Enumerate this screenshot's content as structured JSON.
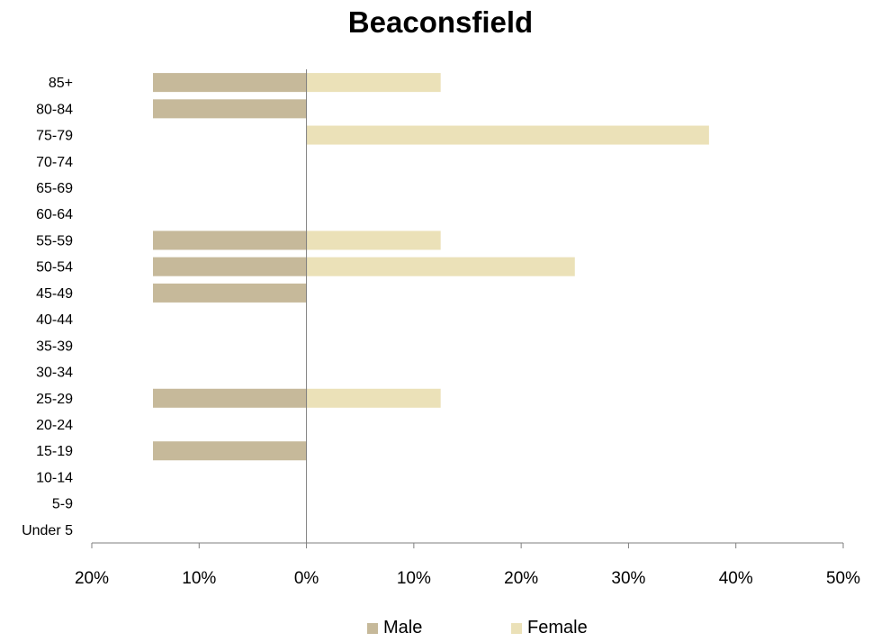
{
  "chart_data": {
    "type": "bar",
    "orientation": "horizontal",
    "title": "Beaconsfield",
    "categories": [
      "85+",
      "80-84",
      "75-79",
      "70-74",
      "65-69",
      "60-64",
      "55-59",
      "50-54",
      "45-49",
      "40-44",
      "35-39",
      "30-34",
      "25-29",
      "20-24",
      "15-19",
      "10-14",
      "5-9",
      "Under 5"
    ],
    "series": [
      {
        "name": "Male",
        "color": "#c6b99a",
        "values": [
          14.3,
          14.3,
          0,
          0,
          0,
          0,
          14.3,
          14.3,
          14.3,
          0,
          0,
          0,
          14.3,
          0,
          14.3,
          0,
          0,
          0
        ]
      },
      {
        "name": "Female",
        "color": "#ebe1b8",
        "values": [
          12.5,
          0,
          37.5,
          0,
          0,
          0,
          12.5,
          25.0,
          0,
          0,
          0,
          0,
          12.5,
          0,
          0,
          0,
          0,
          0
        ]
      }
    ],
    "xlim": [
      -20,
      50
    ],
    "xticks": [
      -20,
      -10,
      0,
      10,
      20,
      30,
      40,
      50
    ],
    "xtick_labels": [
      "20%",
      "10%",
      "0%",
      "10%",
      "20%",
      "30%",
      "40%",
      "50%"
    ],
    "xlabel": "",
    "ylabel": "",
    "axis_color": "#7f7f7f",
    "grid": false,
    "legend_position": "bottom"
  }
}
